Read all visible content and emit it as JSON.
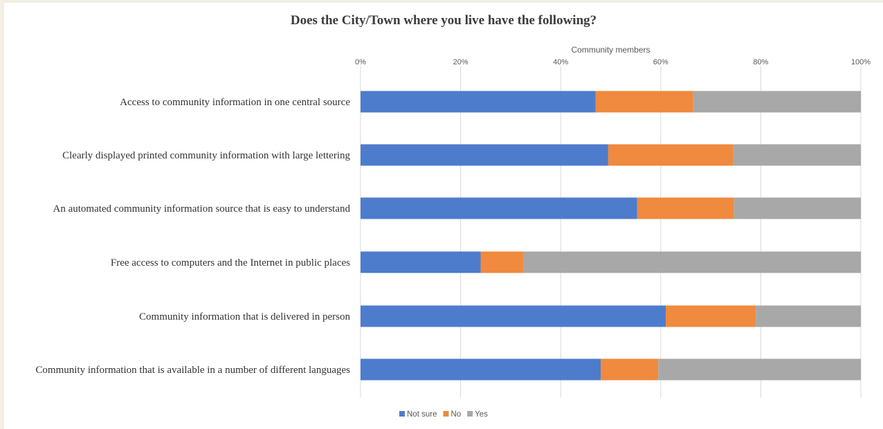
{
  "chart_data": {
    "type": "bar",
    "orientation": "horizontal",
    "stacked": "percent",
    "title": "Does the City/Town where you live have the following?",
    "axis_title": "Community members",
    "axis_position": "top",
    "xlim": [
      0,
      100
    ],
    "ticks": [
      "0%",
      "20%",
      "40%",
      "60%",
      "80%",
      "100%"
    ],
    "grid": true,
    "legend_position": "bottom",
    "categories": [
      "Access to community information in one central source",
      "Clearly displayed printed community information with large lettering",
      "An automated community information source that is easy to understand",
      "Free access to computers and the Internet in public places",
      "Community information that is delivered in person",
      "Community information that is available in a number of different languages"
    ],
    "series": [
      {
        "name": "Not sure",
        "color": "#4e7ccc",
        "values": [
          47,
          49.5,
          55.3,
          24,
          61,
          48
        ]
      },
      {
        "name": "No",
        "color": "#ef8a3e",
        "values": [
          19.5,
          25,
          19.3,
          8.5,
          18,
          11.5
        ]
      },
      {
        "name": "Yes",
        "color": "#a8a8a8",
        "values": [
          33.5,
          25.5,
          25.4,
          67.5,
          21,
          40.5
        ]
      }
    ]
  }
}
